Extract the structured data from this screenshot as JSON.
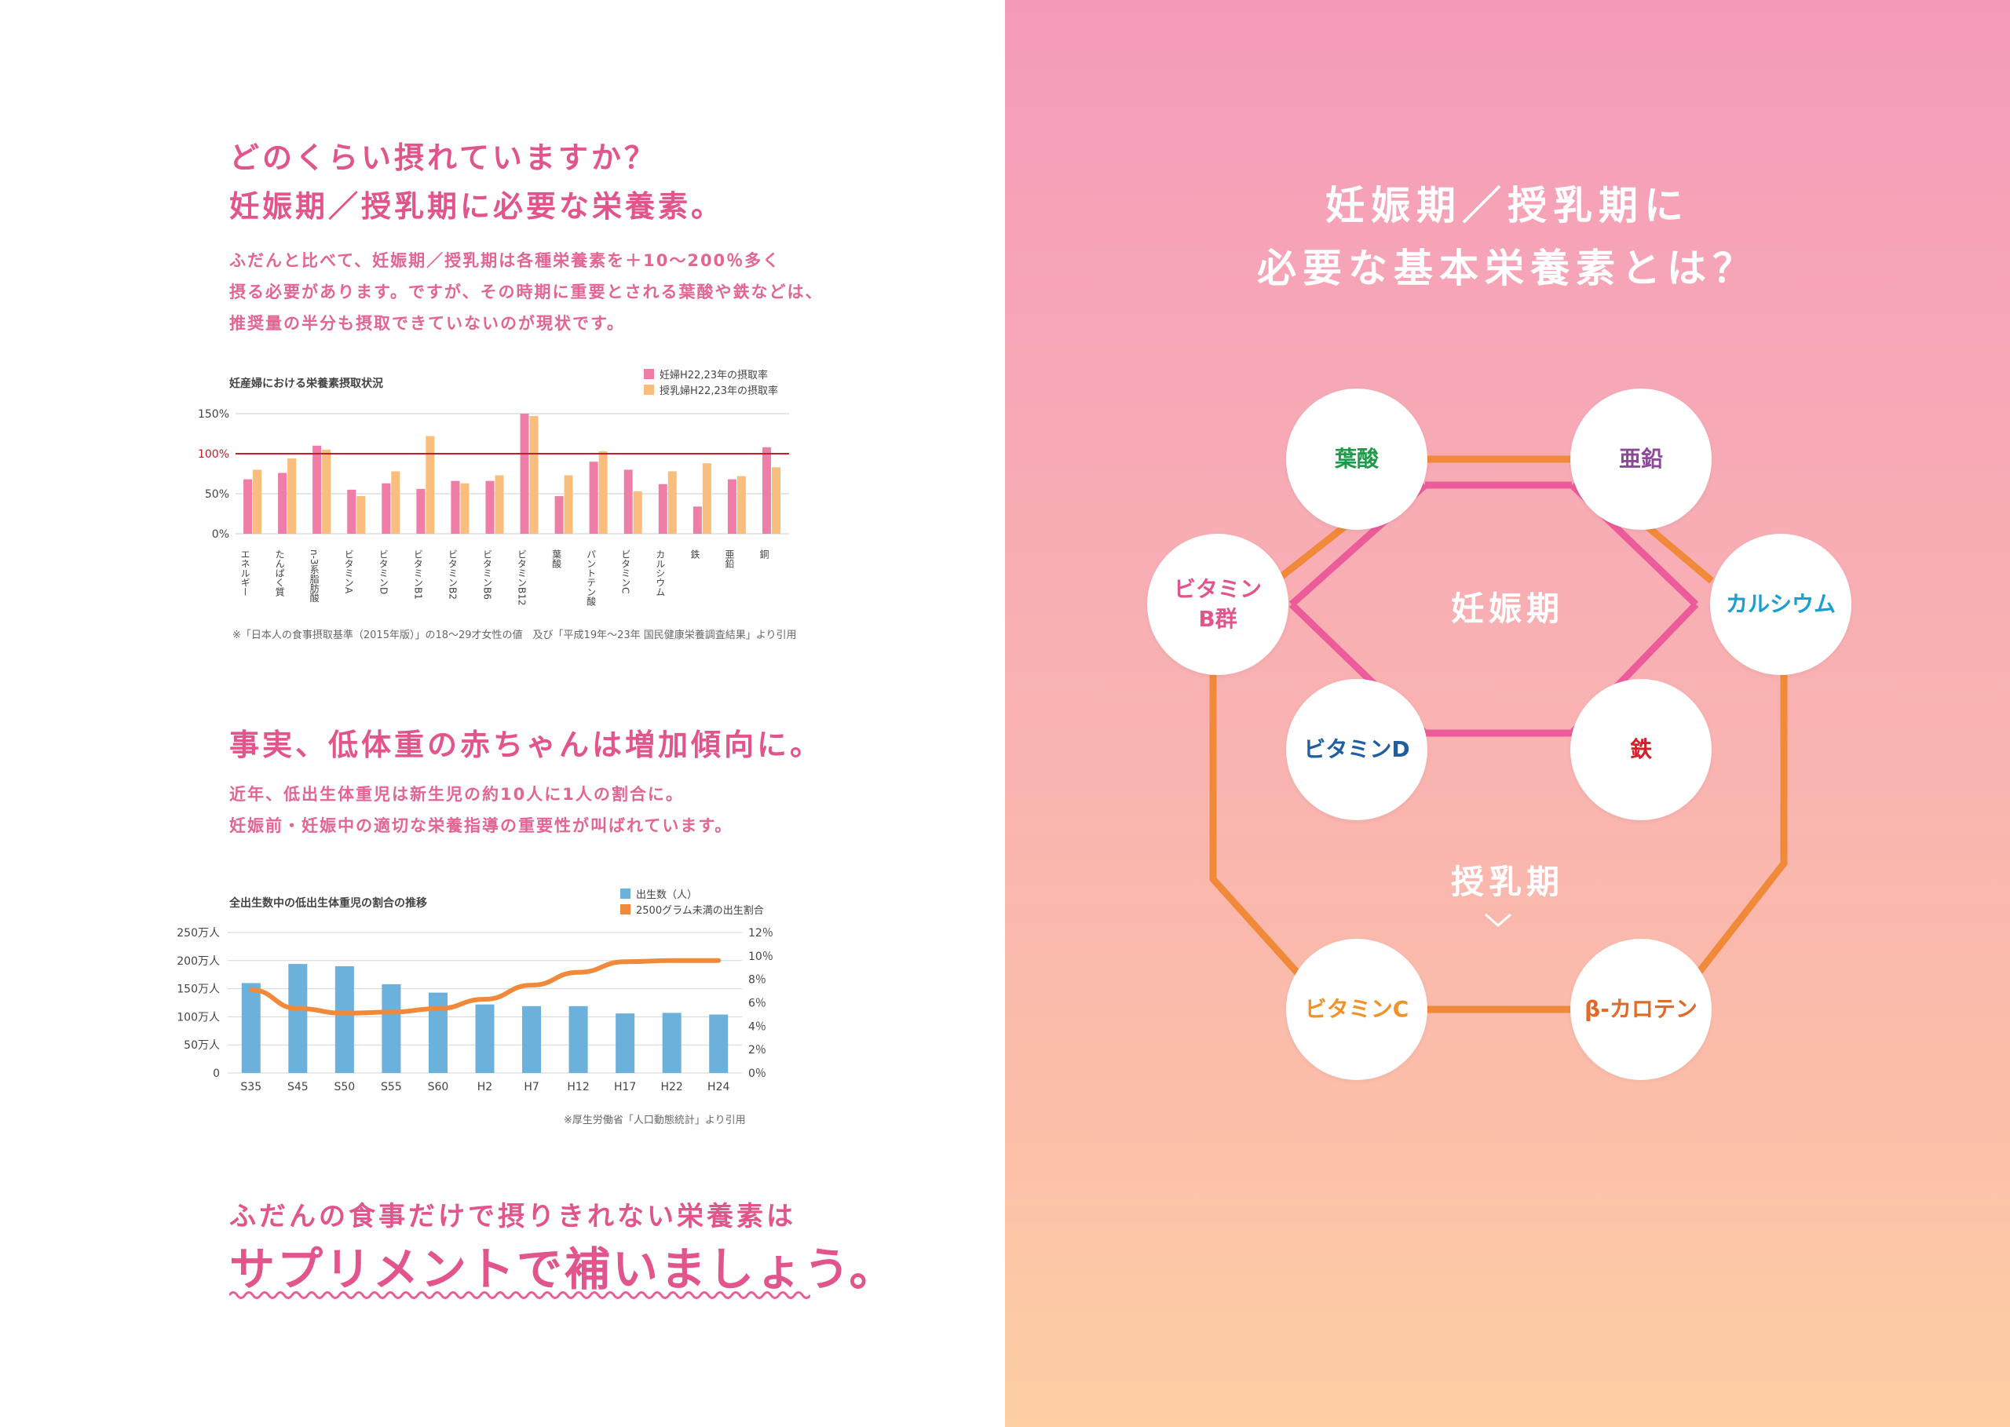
{
  "section1": {
    "heading_line1": "どのくらい摂れていますか？",
    "heading_line2": "妊娠期／授乳期に必要な栄養素。",
    "body_lines": [
      "ふだんと比べて、妊娠期／授乳期は各種栄養素を＋10〜200％多く",
      "摂る必要があります。ですが、その時期に重要とされる葉酸や鉄などは、",
      "推奨量の半分も摂取できていないのが現状です。"
    ]
  },
  "chart1": {
    "title": "妊産婦における栄養素摂取状況",
    "legend": [
      "妊婦H22,23年の摂取率",
      "授乳婦H22,23年の摂取率"
    ],
    "y_ticks": [
      "150%",
      "100%",
      "50%",
      "0%"
    ],
    "note": "※「日本人の食事摂取基準（2015年版）」の18〜29才女性の値　及び「平成19年〜23年 国民健康栄養調査結果」より引用"
  },
  "section2": {
    "heading": "事実、低体重の赤ちゃんは増加傾向に。",
    "body_lines": [
      "近年、低出生体重児は新生児の約10人に1人の割合に。",
      "妊娠前・妊娠中の適切な栄養指導の重要性が叫ばれています。"
    ]
  },
  "chart2": {
    "title": "全出生数中の低出生体重児の割合の推移",
    "legend": [
      "出生数（人）",
      "2500グラム未満の出生割合"
    ],
    "y_left_ticks": [
      "250万人",
      "200万人",
      "150万人",
      "100万人",
      "50万人",
      "0"
    ],
    "y_right_ticks": [
      "12％",
      "10％",
      "8％",
      "6％",
      "4％",
      "2％",
      "0％"
    ],
    "note": "※厚生労働省「人口動態統計」より引用"
  },
  "closing": {
    "line1": "ふだんの食事だけで摂りきれない栄養素は",
    "line2": "サプリメントで補いましょう。"
  },
  "right": {
    "title_line1": "妊娠期／授乳期に",
    "title_line2": "必要な基本栄養素とは？",
    "label_pregnancy": "妊娠期",
    "label_lactation": "授乳期",
    "nodes": [
      {
        "name": "folic-acid",
        "label": "葉酸",
        "color": "#1f9a4a"
      },
      {
        "name": "zinc",
        "label": "亜鉛",
        "color": "#8a4a96"
      },
      {
        "name": "calcium",
        "label": "カルシウム",
        "color": "#1a9fd1"
      },
      {
        "name": "iron",
        "label": "鉄",
        "color": "#d0202a"
      },
      {
        "name": "vitamin-d",
        "label": "ビタミンD",
        "color": "#1f5fa0"
      },
      {
        "name": "vitamin-b",
        "label": "ビタミン\nB群",
        "color": "#e2548c"
      },
      {
        "name": "vitamin-c",
        "label": "ビタミンC",
        "color": "#f0922a"
      },
      {
        "name": "beta-carotene",
        "label": "β-カロテン",
        "color": "#e26a28"
      }
    ],
    "colors": {
      "pink_line": "#ec5c9a",
      "orange_line": "#f08a3a"
    }
  },
  "chart_data": [
    {
      "type": "bar",
      "title": "妊産婦における栄養素摂取状況",
      "categories": [
        "エネルギー",
        "たんぱく質",
        "n-3系脂肪酸",
        "ビタミンA",
        "ビタミンD",
        "ビタミンB1",
        "ビタミンB2",
        "ビタミンB6",
        "ビタミンB12",
        "葉酸",
        "パントテン酸",
        "ビタミンC",
        "カルシウム",
        "鉄",
        "亜鉛",
        "銅"
      ],
      "series": [
        {
          "name": "妊婦H22,23年の摂取率",
          "values": [
            68,
            76,
            110,
            55,
            63,
            56,
            66,
            66,
            150,
            47,
            90,
            80,
            62,
            34,
            68,
            108
          ],
          "color": "#ee7ea8"
        },
        {
          "name": "授乳婦H22,23年の摂取率",
          "values": [
            80,
            94,
            105,
            47,
            78,
            122,
            63,
            73,
            147,
            73,
            103,
            53,
            78,
            88,
            72,
            83
          ],
          "color": "#f9bd7e"
        }
      ],
      "reference_line": 100,
      "ylim": [
        0,
        150
      ],
      "grid": true,
      "legend": "top-right"
    },
    {
      "type": "bar",
      "title": "全出生数中の低出生体重児の割合の推移",
      "categories": [
        "S35",
        "S45",
        "S50",
        "S55",
        "S60",
        "H2",
        "H7",
        "H12",
        "H17",
        "H22",
        "H24"
      ],
      "series": [
        {
          "name": "出生数（人）",
          "values": [
            160,
            194,
            190,
            158,
            143,
            122,
            119,
            119,
            106,
            107,
            104
          ],
          "unit": "万人",
          "color": "#6cb0dc",
          "type": "bar",
          "axis": "left"
        },
        {
          "name": "2500グラム未満の出生割合",
          "values": [
            7.1,
            5.5,
            5.1,
            5.2,
            5.5,
            6.3,
            7.5,
            8.6,
            9.5,
            9.6,
            9.6
          ],
          "unit": "％",
          "color": "#f08a3a",
          "type": "line",
          "axis": "right"
        }
      ],
      "ylim_left": [
        0,
        250
      ],
      "ylim_right": [
        0,
        12
      ],
      "grid": true,
      "legend": "top-right"
    }
  ]
}
